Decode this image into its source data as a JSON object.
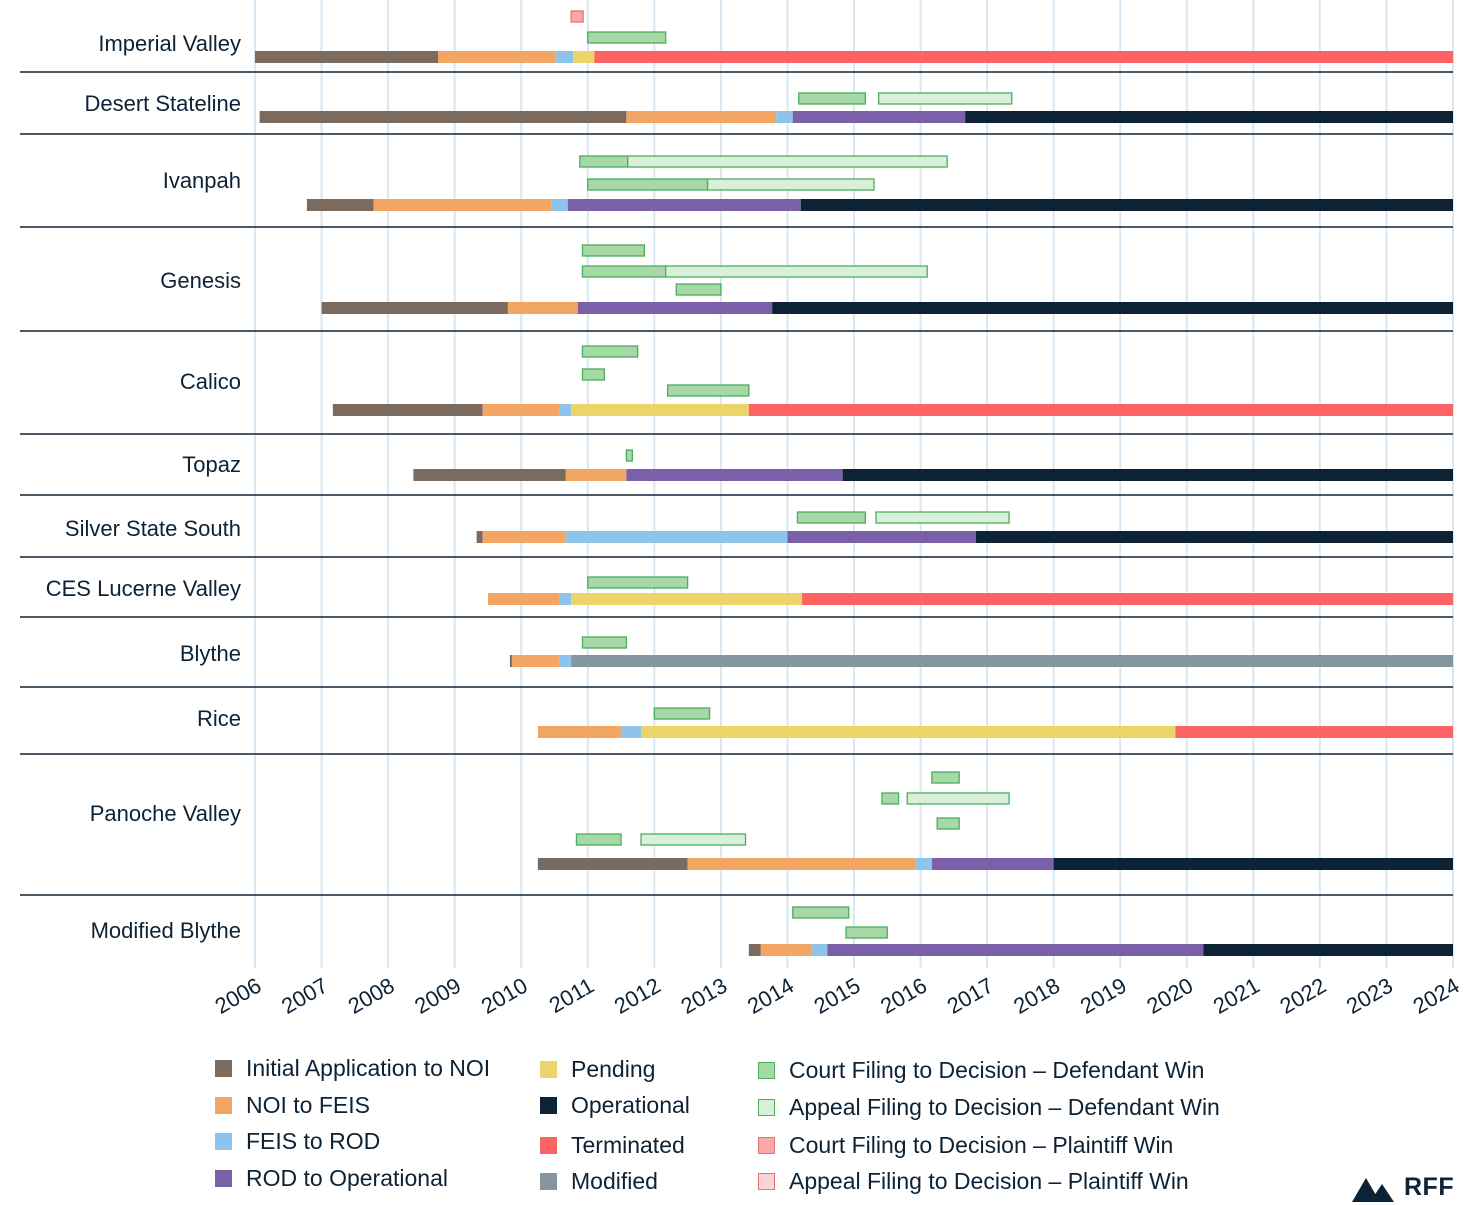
{
  "chart_data": {
    "type": "timeline",
    "x_range": [
      2006,
      2024
    ],
    "year_ticks": [
      "2006",
      "2007",
      "2008",
      "2009",
      "2010",
      "2011",
      "2012",
      "2013",
      "2014",
      "2015",
      "2016",
      "2017",
      "2018",
      "2019",
      "2020",
      "2021",
      "2022",
      "2023",
      "2024"
    ],
    "colors": {
      "initial": "#7b6a5e",
      "noi_feis": "#f3a563",
      "feis_rod": "#8fc4ea",
      "rod_op": "#7a5fa9",
      "operational": "#0d2235",
      "terminated": "#fb6463",
      "pending": "#ebd468",
      "modified": "#8496a0",
      "court_def": "#a6d8a8",
      "appeal_def": "#d9efd9",
      "court_pl": "#f7a9a9",
      "appeal_pl": "#fbd5d5",
      "green_border": "#4caf5a",
      "red_border": "#ec6f6f",
      "grid": "#d7e7f3",
      "divider": "#0d2235"
    },
    "projects": [
      {
        "name": "Imperial Valley",
        "phases": [
          {
            "key": "initial",
            "start": 2006.0,
            "end": 2008.75
          },
          {
            "key": "noi_feis",
            "start": 2008.75,
            "end": 2010.52
          },
          {
            "key": "feis_rod",
            "start": 2010.52,
            "end": 2010.78
          },
          {
            "key": "pending",
            "start": 2010.78,
            "end": 2011.1
          },
          {
            "key": "terminated",
            "start": 2011.1,
            "end": 2024.0
          }
        ],
        "cases": [
          {
            "key": "court_pl",
            "start": 2010.75,
            "end": 2010.93,
            "row": 0
          },
          {
            "key": "court_def",
            "start": 2011.0,
            "end": 2012.17,
            "row": 1
          }
        ]
      },
      {
        "name": "Desert Stateline",
        "phases": [
          {
            "key": "initial",
            "start": 2006.07,
            "end": 2011.58
          },
          {
            "key": "noi_feis",
            "start": 2011.58,
            "end": 2013.83
          },
          {
            "key": "feis_rod",
            "start": 2013.83,
            "end": 2014.08
          },
          {
            "key": "rod_op",
            "start": 2014.08,
            "end": 2016.67
          },
          {
            "key": "operational",
            "start": 2016.67,
            "end": 2024.0
          }
        ],
        "cases": [
          {
            "key": "court_def",
            "start": 2014.17,
            "end": 2015.17,
            "row": 0
          },
          {
            "key": "appeal_def",
            "start": 2015.37,
            "end": 2017.37,
            "row": 0
          }
        ]
      },
      {
        "name": "Ivanpah",
        "phases": [
          {
            "key": "initial",
            "start": 2006.78,
            "end": 2007.78
          },
          {
            "key": "noi_feis",
            "start": 2007.78,
            "end": 2010.45
          },
          {
            "key": "feis_rod",
            "start": 2010.45,
            "end": 2010.7
          },
          {
            "key": "rod_op",
            "start": 2010.7,
            "end": 2014.2
          },
          {
            "key": "operational",
            "start": 2014.2,
            "end": 2024.0
          }
        ],
        "cases": [
          {
            "key": "court_def",
            "start": 2010.88,
            "end": 2011.6,
            "row": 0
          },
          {
            "key": "appeal_def",
            "start": 2011.6,
            "end": 2016.4,
            "row": 0
          },
          {
            "key": "court_def",
            "start": 2011.0,
            "end": 2012.8,
            "row": 1
          },
          {
            "key": "appeal_def",
            "start": 2012.8,
            "end": 2015.3,
            "row": 1
          }
        ]
      },
      {
        "name": "Genesis",
        "phases": [
          {
            "key": "initial",
            "start": 2007.0,
            "end": 2009.8
          },
          {
            "key": "noi_feis",
            "start": 2009.8,
            "end": 2010.85
          },
          {
            "key": "rod_op",
            "start": 2010.85,
            "end": 2013.77
          },
          {
            "key": "operational",
            "start": 2013.77,
            "end": 2024.0
          }
        ],
        "cases": [
          {
            "key": "court_def",
            "start": 2010.92,
            "end": 2011.85,
            "row": 0
          },
          {
            "key": "court_def",
            "start": 2010.92,
            "end": 2012.17,
            "row": 1
          },
          {
            "key": "appeal_def",
            "start": 2012.17,
            "end": 2016.1,
            "row": 1
          },
          {
            "key": "court_def",
            "start": 2012.33,
            "end": 2013.0,
            "row": 2
          }
        ]
      },
      {
        "name": "Calico",
        "phases": [
          {
            "key": "initial",
            "start": 2007.17,
            "end": 2009.42
          },
          {
            "key": "noi_feis",
            "start": 2009.42,
            "end": 2010.58
          },
          {
            "key": "feis_rod",
            "start": 2010.58,
            "end": 2010.75
          },
          {
            "key": "pending",
            "start": 2010.75,
            "end": 2013.42
          },
          {
            "key": "terminated",
            "start": 2013.42,
            "end": 2024.0
          }
        ],
        "cases": [
          {
            "key": "court_def",
            "start": 2010.92,
            "end": 2011.75,
            "row": 0
          },
          {
            "key": "court_def",
            "start": 2010.92,
            "end": 2011.25,
            "row": 1
          },
          {
            "key": "court_def",
            "start": 2012.2,
            "end": 2013.42,
            "row": 2
          }
        ]
      },
      {
        "name": "Topaz",
        "phases": [
          {
            "key": "initial",
            "start": 2008.38,
            "end": 2010.67
          },
          {
            "key": "noi_feis",
            "start": 2010.67,
            "end": 2011.58
          },
          {
            "key": "rod_op",
            "start": 2011.58,
            "end": 2014.83
          },
          {
            "key": "operational",
            "start": 2014.83,
            "end": 2024.0
          }
        ],
        "cases": [
          {
            "key": "court_def",
            "start": 2011.58,
            "end": 2011.67,
            "row": 0
          }
        ]
      },
      {
        "name": "Silver State South",
        "phases": [
          {
            "key": "initial",
            "start": 2009.33,
            "end": 2009.42
          },
          {
            "key": "noi_feis",
            "start": 2009.42,
            "end": 2010.67
          },
          {
            "key": "feis_rod",
            "start": 2010.67,
            "end": 2014.0
          },
          {
            "key": "rod_op",
            "start": 2014.0,
            "end": 2016.83
          },
          {
            "key": "operational",
            "start": 2016.83,
            "end": 2024.0
          }
        ],
        "cases": [
          {
            "key": "court_def",
            "start": 2014.15,
            "end": 2015.17,
            "row": 0
          },
          {
            "key": "appeal_def",
            "start": 2015.33,
            "end": 2017.33,
            "row": 0
          }
        ]
      },
      {
        "name": "CES Lucerne Valley",
        "phases": [
          {
            "key": "noi_feis",
            "start": 2009.5,
            "end": 2010.58
          },
          {
            "key": "feis_rod",
            "start": 2010.58,
            "end": 2010.75
          },
          {
            "key": "pending",
            "start": 2010.75,
            "end": 2014.22
          },
          {
            "key": "terminated",
            "start": 2014.22,
            "end": 2024.0
          }
        ],
        "cases": [
          {
            "key": "court_def",
            "start": 2011.0,
            "end": 2012.5,
            "row": 0
          }
        ]
      },
      {
        "name": "Blythe",
        "phases": [
          {
            "key": "initial",
            "start": 2009.83,
            "end": 2009.86
          },
          {
            "key": "noi_feis",
            "start": 2009.86,
            "end": 2010.58
          },
          {
            "key": "feis_rod",
            "start": 2010.58,
            "end": 2010.75
          },
          {
            "key": "modified",
            "start": 2010.75,
            "end": 2024.0
          }
        ],
        "cases": [
          {
            "key": "court_def",
            "start": 2010.92,
            "end": 2011.58,
            "row": 0
          }
        ]
      },
      {
        "name": "Rice",
        "phases": [
          {
            "key": "noi_feis",
            "start": 2010.25,
            "end": 2011.5
          },
          {
            "key": "feis_rod",
            "start": 2011.5,
            "end": 2011.8
          },
          {
            "key": "pending",
            "start": 2011.8,
            "end": 2019.83
          },
          {
            "key": "terminated",
            "start": 2019.83,
            "end": 2024.0
          }
        ],
        "cases": [
          {
            "key": "court_def",
            "start": 2012.0,
            "end": 2012.83,
            "row": 0
          }
        ]
      },
      {
        "name": "Panoche Valley",
        "phases": [
          {
            "key": "initial",
            "start": 2010.25,
            "end": 2012.5
          },
          {
            "key": "noi_feis",
            "start": 2012.5,
            "end": 2015.92
          },
          {
            "key": "feis_rod",
            "start": 2015.92,
            "end": 2016.17
          },
          {
            "key": "rod_op",
            "start": 2016.17,
            "end": 2018.0
          },
          {
            "key": "operational",
            "start": 2018.0,
            "end": 2024.0
          }
        ],
        "cases": [
          {
            "key": "court_def",
            "start": 2016.17,
            "end": 2016.58,
            "row": 0
          },
          {
            "key": "court_def",
            "start": 2015.42,
            "end": 2015.67,
            "row": 1
          },
          {
            "key": "appeal_def",
            "start": 2015.8,
            "end": 2017.33,
            "row": 1
          },
          {
            "key": "court_def",
            "start": 2016.25,
            "end": 2016.58,
            "row": 2
          },
          {
            "key": "court_def",
            "start": 2010.83,
            "end": 2011.5,
            "row": 3
          },
          {
            "key": "appeal_def",
            "start": 2011.8,
            "end": 2013.37,
            "row": 3
          }
        ]
      },
      {
        "name": "Modified Blythe",
        "phases": [
          {
            "key": "initial",
            "start": 2013.42,
            "end": 2013.6
          },
          {
            "key": "noi_feis",
            "start": 2013.6,
            "end": 2014.37
          },
          {
            "key": "feis_rod",
            "start": 2014.37,
            "end": 2014.6
          },
          {
            "key": "rod_op",
            "start": 2014.6,
            "end": 2020.25
          },
          {
            "key": "operational",
            "start": 2020.25,
            "end": 2024.0
          }
        ],
        "cases": [
          {
            "key": "court_def",
            "start": 2014.08,
            "end": 2014.92,
            "row": 0
          },
          {
            "key": "court_def",
            "start": 2014.88,
            "end": 2015.5,
            "row": 1
          }
        ]
      }
    ],
    "legend": [
      {
        "key": "initial",
        "label": "Initial Application to NOI"
      },
      {
        "key": "noi_feis",
        "label": "NOI to FEIS"
      },
      {
        "key": "feis_rod",
        "label": "FEIS to ROD"
      },
      {
        "key": "rod_op",
        "label": "ROD to Operational"
      },
      {
        "key": "pending",
        "label": "Pending"
      },
      {
        "key": "operational",
        "label": "Operational"
      },
      {
        "key": "terminated",
        "label": "Terminated"
      },
      {
        "key": "modified",
        "label": "Modified"
      },
      {
        "key": "court_def",
        "label": "Court Filing to Decision – Defendant Win"
      },
      {
        "key": "appeal_def",
        "label": "Appeal Filing to Decision – Defendant Win"
      },
      {
        "key": "court_pl",
        "label": "Court Filing to Decision – Plaintiff Win"
      },
      {
        "key": "appeal_pl",
        "label": "Appeal Filing to Decision – Plaintiff Win"
      }
    ]
  },
  "logo": {
    "text": "RFF"
  }
}
